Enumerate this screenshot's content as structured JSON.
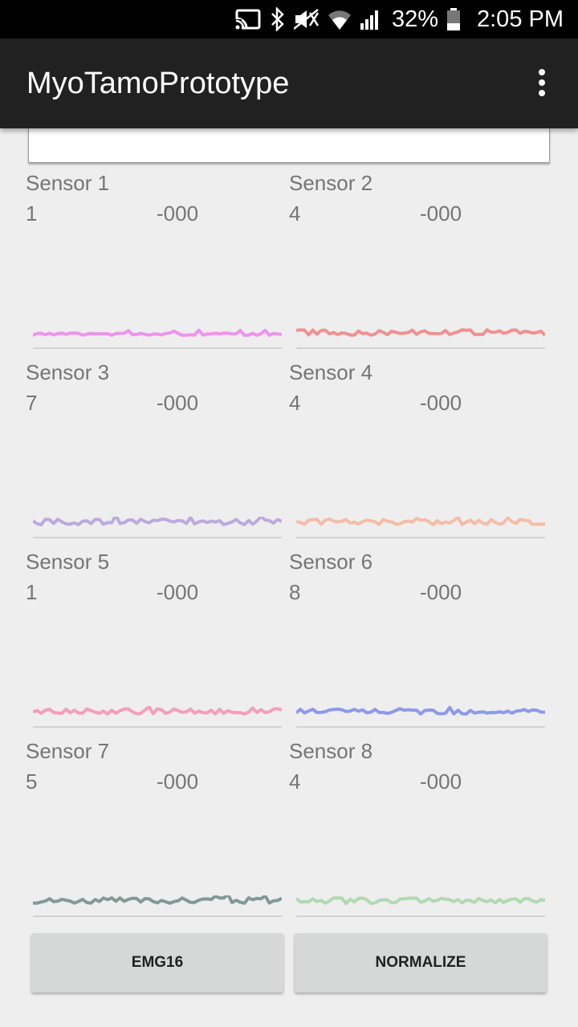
{
  "status_bar": {
    "battery_percent": "32%",
    "time": "2:05 PM",
    "icons": [
      "cast-icon",
      "bluetooth-icon",
      "mute-icon",
      "wifi-icon",
      "signal-icon",
      "battery-icon"
    ]
  },
  "app_bar": {
    "title": "MyoTamoPrototype",
    "overflow_icon": "more-vert-icon"
  },
  "sensors": [
    {
      "name": "Sensor 1",
      "value": "1",
      "reading": "-000",
      "color": "#ee82ee"
    },
    {
      "name": "Sensor 2",
      "value": "4",
      "reading": "-000",
      "color": "#f08080"
    },
    {
      "name": "Sensor 3",
      "value": "7",
      "reading": "-000",
      "color": "#b39ddb"
    },
    {
      "name": "Sensor 4",
      "value": "4",
      "reading": "-000",
      "color": "#f5b49a"
    },
    {
      "name": "Sensor 5",
      "value": "1",
      "reading": "-000",
      "color": "#f48fb1"
    },
    {
      "name": "Sensor 6",
      "value": "8",
      "reading": "-000",
      "color": "#7b8be8"
    },
    {
      "name": "Sensor 7",
      "value": "5",
      "reading": "-000",
      "color": "#6f8a84"
    },
    {
      "name": "Sensor 8",
      "value": "4",
      "reading": "-000",
      "color": "#a5d6a7"
    }
  ],
  "buttons": {
    "emg16_label": "EMG16",
    "normalize_label": "NORMALIZE"
  }
}
